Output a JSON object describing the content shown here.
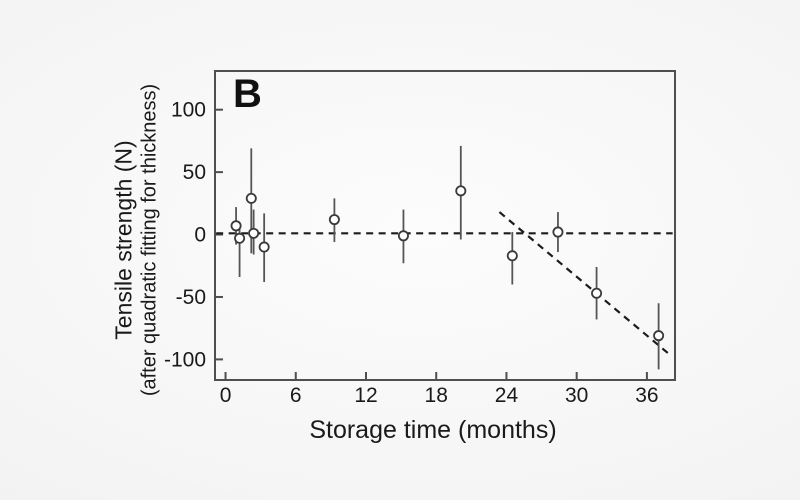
{
  "chart_data": {
    "type": "scatter",
    "panel_label": "B",
    "xlabel": "Storage time (months)",
    "ylabel": "Tensile strength (N)",
    "ylabel_sub": "(after quadratic fitting for thickness)",
    "x_ticks": [
      0,
      6,
      12,
      18,
      24,
      30,
      36
    ],
    "y_ticks": [
      100,
      50,
      0,
      -50,
      -100
    ],
    "xlim": [
      -0.9,
      38.4
    ],
    "ylim": [
      -116.5,
      131
    ],
    "grid": false,
    "legend": null,
    "marker": "open-circle",
    "points": [
      {
        "x": 0.9,
        "y": 7,
        "lo": -8,
        "hi": 22
      },
      {
        "x": 1.2,
        "y": -3,
        "lo": -34,
        "hi": 10
      },
      {
        "x": 2.2,
        "y": 29,
        "lo": -15,
        "hi": 69
      },
      {
        "x": 2.4,
        "y": 1,
        "lo": -16,
        "hi": 20
      },
      {
        "x": 3.3,
        "y": -10,
        "lo": -38,
        "hi": 17
      },
      {
        "x": 9.3,
        "y": 12,
        "lo": -6,
        "hi": 29
      },
      {
        "x": 15.2,
        "y": -1,
        "lo": -23,
        "hi": 20
      },
      {
        "x": 20.1,
        "y": 35,
        "lo": -4,
        "hi": 71
      },
      {
        "x": 24.5,
        "y": -17,
        "lo": -40,
        "hi": 2
      },
      {
        "x": 28.4,
        "y": 2,
        "lo": -14,
        "hi": 18
      },
      {
        "x": 31.7,
        "y": -47,
        "lo": -68,
        "hi": -26
      },
      {
        "x": 37.0,
        "y": -81,
        "lo": -108,
        "hi": -55
      }
    ],
    "trend_lines": [
      {
        "name": "zero-reference-line",
        "style": "dashed",
        "x1": -0.8,
        "y1": 1,
        "x2": 38.2,
        "y2": 1
      },
      {
        "name": "late-decline-fit-line",
        "style": "dashed",
        "x1": 23.4,
        "y1": 18,
        "x2": 37.8,
        "y2": -95
      }
    ],
    "colors": {
      "axis": "#4f4f4f",
      "text": "#1a1a1a",
      "marker_stroke": "#3a3a3a",
      "marker_fill": "#ffffff",
      "error_bar": "#555555",
      "trend_line": "#1c1c1c"
    }
  }
}
